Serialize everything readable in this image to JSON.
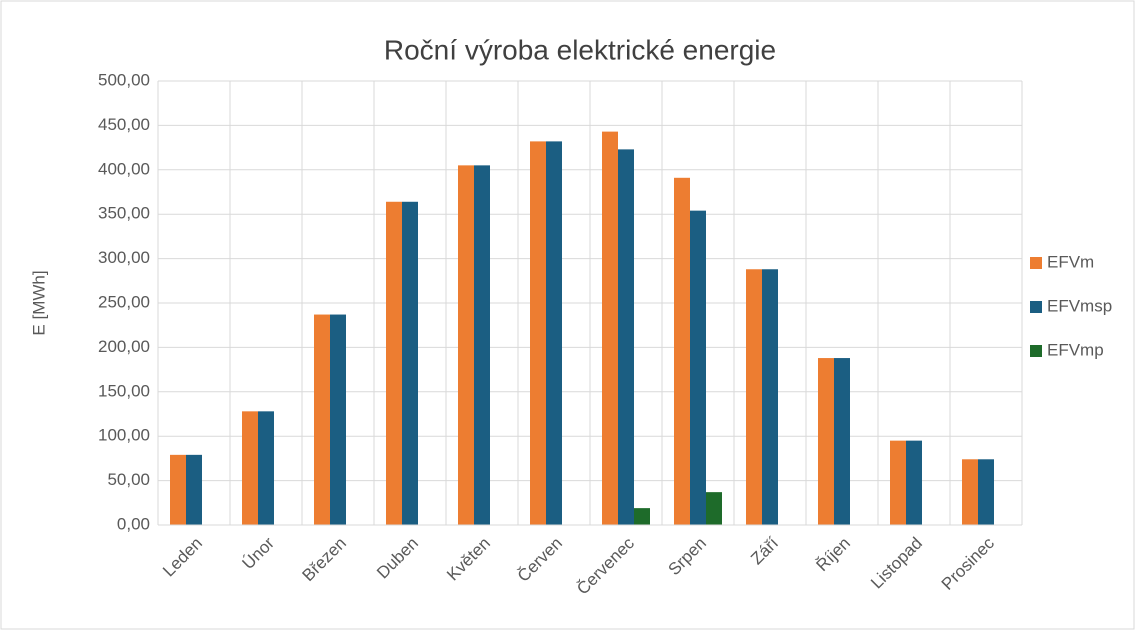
{
  "chart_data": {
    "type": "bar",
    "title": "Roční výroba elektrické energie",
    "y_label": "E [MWh]",
    "categories": [
      "Leden",
      "Únor",
      "Březen",
      "Duben",
      "Květen",
      "Červen",
      "Červenec",
      "Srpen",
      "Září",
      "Říjen",
      "Listopad",
      "Prosinec"
    ],
    "series": [
      {
        "name": "EFVm",
        "color": "#ed7d31",
        "values": [
          79,
          128,
          237,
          364,
          405,
          432,
          443,
          391,
          288,
          188,
          95,
          74
        ]
      },
      {
        "name": "EFVmsp",
        "color": "#1b5e82",
        "values": [
          79,
          128,
          237,
          364,
          405,
          432,
          423,
          354,
          288,
          188,
          95,
          74
        ]
      },
      {
        "name": "EFVmp",
        "color": "#1e6b2a",
        "values": [
          0,
          0,
          0,
          0,
          0,
          0,
          19,
          37,
          0,
          0,
          0,
          0
        ]
      }
    ],
    "ylim": [
      0,
      500
    ],
    "yticks": [
      {
        "value": 0,
        "label": "0,00"
      },
      {
        "value": 50,
        "label": "50,00"
      },
      {
        "value": 100,
        "label": "100,00"
      },
      {
        "value": 150,
        "label": "150,00"
      },
      {
        "value": 200,
        "label": "200,00"
      },
      {
        "value": 250,
        "label": "250,00"
      },
      {
        "value": 300,
        "label": "300,00"
      },
      {
        "value": 350,
        "label": "350,00"
      },
      {
        "value": 400,
        "label": "400,00"
      },
      {
        "value": 450,
        "label": "450,00"
      },
      {
        "value": 500,
        "label": "500,00"
      }
    ],
    "grid": true,
    "legend": "right"
  }
}
